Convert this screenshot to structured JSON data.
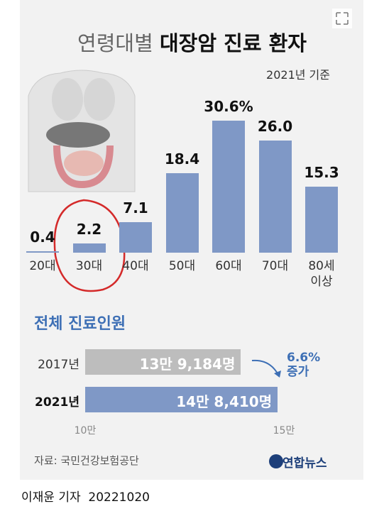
{
  "header": {
    "title": [
      "연령대별",
      "대장암 진료 환자"
    ],
    "subtitle": "2021년 기준"
  },
  "chart_data": [
    {
      "type": "bar",
      "orientation": "vertical",
      "categories": [
        "20대",
        "30대",
        "40대",
        "50대",
        "60대",
        "70대",
        "80세\n이상"
      ],
      "values": [
        0.4,
        2.2,
        7.1,
        18.4,
        30.6,
        26.0,
        15.3
      ],
      "value_labels": [
        "0.4",
        "2.2",
        "7.1",
        "18.4",
        "30.6%",
        "26.0",
        "15.3"
      ],
      "color": "#7f98c6"
    },
    {
      "type": "bar",
      "orientation": "horizontal",
      "title": "전체 진료인원",
      "categories": [
        "2017년",
        "2021년"
      ],
      "values": [
        139184,
        148410
      ],
      "value_labels": [
        "13만 9,184명",
        "14만 8,410명"
      ],
      "colors": [
        "#bdbdbd",
        "#7f98c6"
      ],
      "xlim": [
        100000,
        150000
      ],
      "xticks": [
        {
          "value": 100000,
          "label": "10만"
        },
        {
          "value": 150000,
          "label": "15만"
        }
      ],
      "annotation": "6.6%\n증가"
    }
  ],
  "footer": {
    "source": "자료: 국민건강보험공단",
    "logo": "연합뉴스",
    "byline": "이재윤 기자",
    "date": "20221020"
  }
}
